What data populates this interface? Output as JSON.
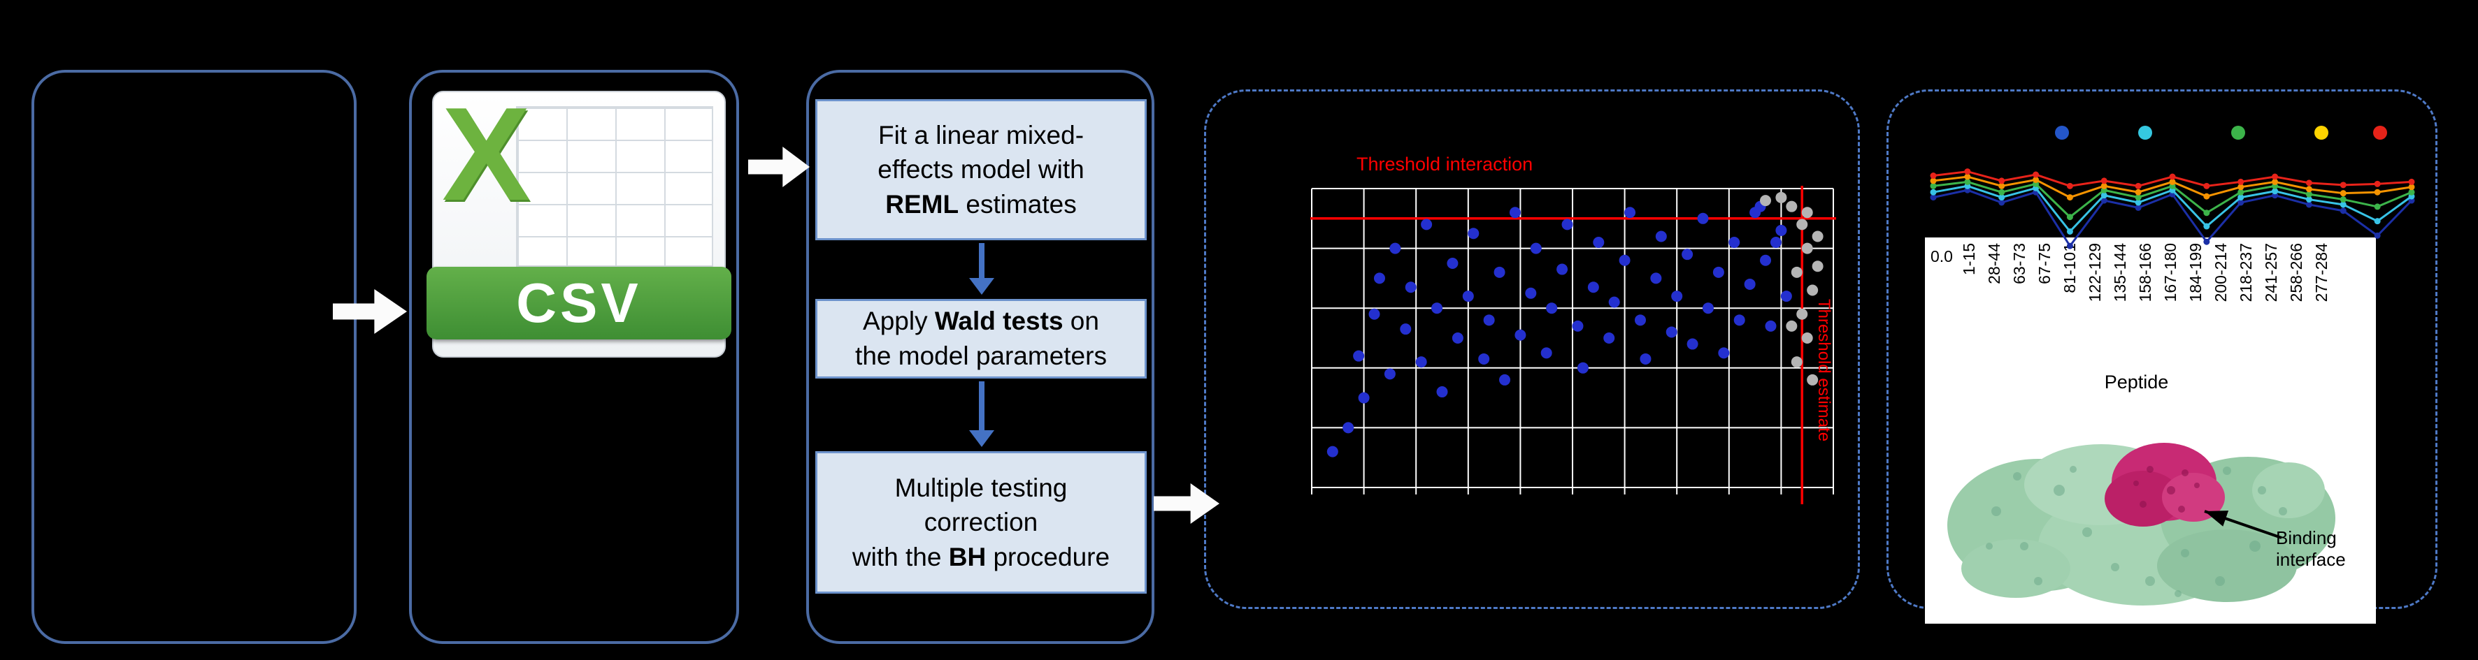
{
  "figure": {
    "background": "#000000",
    "panel_border_color": "#4b6ba4",
    "dashed_border_color": "#4e79c6",
    "step_box_fill": "#dbe5f1",
    "threshold_color": "#ff0000"
  },
  "csv_icon": {
    "letter": "X",
    "label": "CSV"
  },
  "steps": {
    "step1": {
      "l1": "Fit a linear mixed-",
      "l2": "effects model with",
      "l3_bold": "REML",
      "l3_rest": " estimates"
    },
    "step2": {
      "l1_pre": "Apply ",
      "l1_bold": "Wald tests",
      "l1_post": " on",
      "l2": "the model parameters"
    },
    "step3": {
      "l1": "Multiple testing",
      "l2": "correction",
      "l3_pre": "with the ",
      "l3_bold": "BH",
      "l3_post": " procedure"
    }
  },
  "scatter_panel": {
    "top_label": "Threshold interaction",
    "right_label": "Threshold estimate"
  },
  "peptide_panel": {
    "ytick": "0.0",
    "xlabel": "Peptide",
    "binding_line1": "Binding",
    "binding_line2": "interface"
  },
  "chart_data": [
    {
      "type": "scatter",
      "title": "Threshold interaction",
      "grid": true,
      "x_gridlines": 10,
      "y_gridlines": 5,
      "threshold_h_y": 10,
      "threshold_v_x": 94,
      "threshold_h_label": "Threshold interaction",
      "threshold_v_label": "Threshold estimate",
      "series": [
        {
          "name": "significant-points",
          "color": "#2430cf",
          "points": [
            [
              4,
              88
            ],
            [
              7,
              80
            ],
            [
              9,
              56
            ],
            [
              10,
              70
            ],
            [
              12,
              42
            ],
            [
              13,
              30
            ],
            [
              15,
              62
            ],
            [
              16,
              20
            ],
            [
              18,
              47
            ],
            [
              19,
              33
            ],
            [
              21,
              58
            ],
            [
              22,
              12
            ],
            [
              24,
              40
            ],
            [
              25,
              68
            ],
            [
              27,
              25
            ],
            [
              28,
              50
            ],
            [
              30,
              36
            ],
            [
              31,
              15
            ],
            [
              33,
              57
            ],
            [
              34,
              44
            ],
            [
              36,
              28
            ],
            [
              37,
              64
            ],
            [
              39,
              8
            ],
            [
              40,
              49
            ],
            [
              42,
              35
            ],
            [
              43,
              20
            ],
            [
              45,
              55
            ],
            [
              46,
              40
            ],
            [
              48,
              27
            ],
            [
              49,
              12
            ],
            [
              51,
              46
            ],
            [
              52,
              60
            ],
            [
              54,
              33
            ],
            [
              55,
              18
            ],
            [
              57,
              50
            ],
            [
              58,
              38
            ],
            [
              60,
              24
            ],
            [
              61,
              8
            ],
            [
              63,
              44
            ],
            [
              64,
              57
            ],
            [
              66,
              30
            ],
            [
              67,
              16
            ],
            [
              69,
              48
            ],
            [
              70,
              36
            ],
            [
              72,
              22
            ],
            [
              73,
              52
            ],
            [
              75,
              10
            ],
            [
              76,
              40
            ],
            [
              78,
              28
            ],
            [
              79,
              55
            ],
            [
              81,
              18
            ],
            [
              82,
              44
            ],
            [
              84,
              32
            ],
            [
              85,
              8
            ],
            [
              86,
              6
            ],
            [
              87,
              24
            ],
            [
              88,
              46
            ],
            [
              89,
              18
            ],
            [
              90,
              14
            ],
            [
              91,
              36
            ]
          ]
        },
        {
          "name": "threshold-points",
          "color": "#b5b5b5",
          "points": [
            [
              92,
              6
            ],
            [
              94,
              12
            ],
            [
              95,
              20
            ],
            [
              93,
              28
            ],
            [
              96,
              34
            ],
            [
              94,
              42
            ],
            [
              95,
              50
            ],
            [
              93,
              58
            ],
            [
              96,
              64
            ],
            [
              97,
              26
            ],
            [
              92,
              46
            ],
            [
              95,
              8
            ],
            [
              87,
              4
            ],
            [
              90,
              3
            ],
            [
              97,
              16
            ]
          ]
        }
      ]
    },
    {
      "type": "line",
      "xlabel": "Peptide",
      "ytick_label": "0.0",
      "categories": [
        "1-15",
        "28-44",
        "63-73",
        "67-75",
        "81-101",
        "122-129",
        "135-144",
        "158-166",
        "167-180",
        "184-199",
        "200-214",
        "218-237",
        "241-257",
        "258-266",
        "277-284"
      ],
      "legend_dot_colors": [
        "#2456c9",
        "#35c8e0",
        "#3cb44a",
        "#ffd400",
        "#e62319"
      ],
      "series": [
        {
          "name": "navy",
          "color": "#1b2fa6",
          "values": [
            0.55,
            0.62,
            0.5,
            0.6,
            0.08,
            0.52,
            0.45,
            0.58,
            0.12,
            0.5,
            0.57,
            0.48,
            0.42,
            0.18,
            0.52
          ]
        },
        {
          "name": "cyan",
          "color": "#38c3e6",
          "values": [
            0.6,
            0.66,
            0.55,
            0.64,
            0.22,
            0.57,
            0.5,
            0.62,
            0.27,
            0.55,
            0.61,
            0.53,
            0.48,
            0.32,
            0.56
          ]
        },
        {
          "name": "green",
          "color": "#3cb44a",
          "values": [
            0.66,
            0.7,
            0.6,
            0.68,
            0.36,
            0.62,
            0.55,
            0.66,
            0.4,
            0.6,
            0.66,
            0.58,
            0.53,
            0.46,
            0.6
          ]
        },
        {
          "name": "orange",
          "color": "#f59300",
          "values": [
            0.71,
            0.75,
            0.66,
            0.72,
            0.55,
            0.66,
            0.6,
            0.7,
            0.56,
            0.65,
            0.7,
            0.63,
            0.59,
            0.6,
            0.65
          ]
        },
        {
          "name": "red",
          "color": "#e8231a",
          "values": [
            0.76,
            0.8,
            0.71,
            0.77,
            0.66,
            0.71,
            0.66,
            0.75,
            0.66,
            0.7,
            0.75,
            0.69,
            0.67,
            0.68,
            0.7
          ]
        }
      ]
    }
  ]
}
